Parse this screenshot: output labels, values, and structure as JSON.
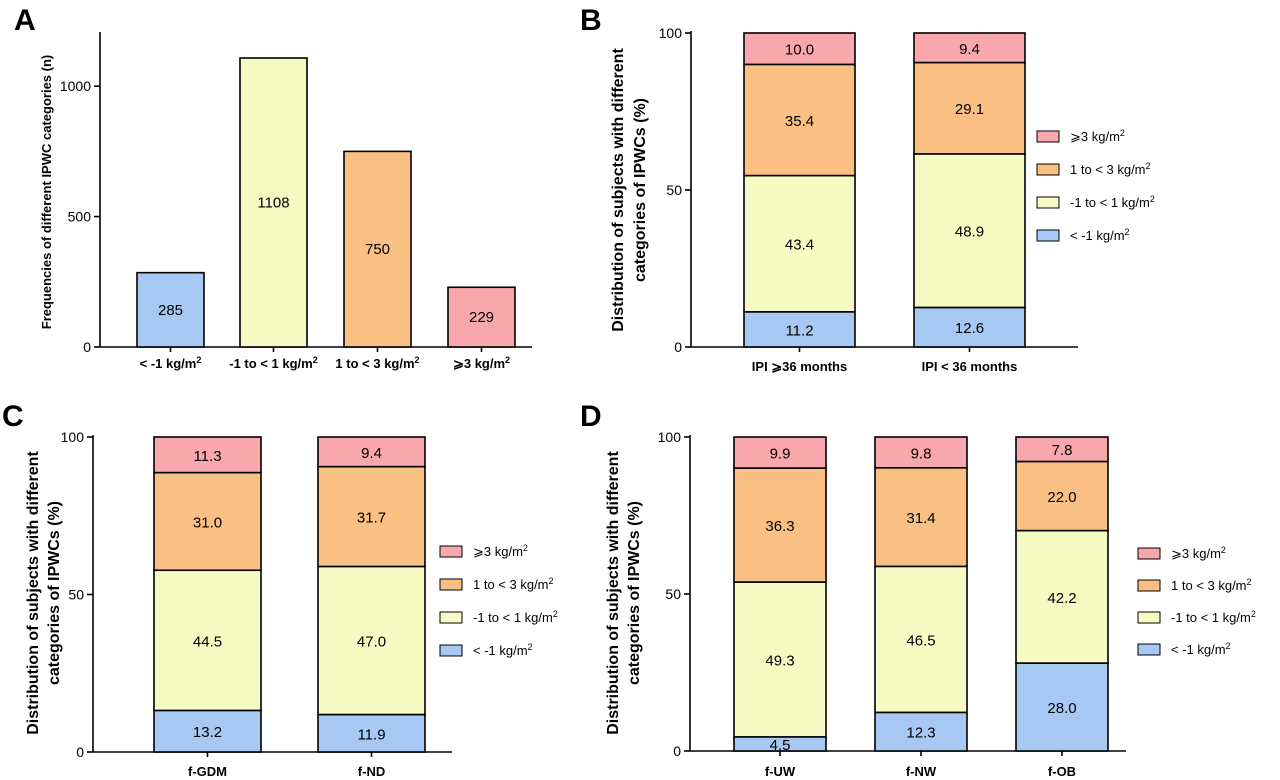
{
  "colors": {
    "lt_m1": "#a6c8f2",
    "m1_1": "#f6fbc3",
    "1_3": "#f9bf83",
    "ge3": "#f8a8ac",
    "axis": "#000000"
  },
  "chart_data": [
    {
      "panel": "A",
      "type": "bar",
      "ylabel": "Frequencies of different IPWC categories (n)",
      "ylim": [
        0,
        1200
      ],
      "yticks": [
        "0",
        "500",
        "1000"
      ],
      "categories": [
        "< -1 kg/m2",
        "-1 to < 1 kg/m2",
        "1 to < 3 kg/m2",
        "⩾3 kg/m2"
      ],
      "values": [
        285,
        1108,
        750,
        229
      ],
      "labels": [
        "285",
        "1108",
        "750",
        "229"
      ],
      "color_keys": [
        "lt_m1",
        "m1_1",
        "1_3",
        "ge3"
      ]
    },
    {
      "panel": "B",
      "type": "bar",
      "stacked": true,
      "ylabel_lines": [
        "Distribution of subjects with different",
        "categories of IPWCs (%)"
      ],
      "ylim": [
        0,
        100
      ],
      "yticks": [
        "0",
        "50",
        "100"
      ],
      "categories": [
        "IPI ⩾36 months",
        "IPI < 36 months"
      ],
      "series": [
        {
          "name": "< -1 kg/m2",
          "color_key": "lt_m1",
          "values": [
            11.2,
            12.6
          ],
          "labels": [
            "11.2",
            "12.6"
          ]
        },
        {
          "name": "-1 to < 1 kg/m2",
          "color_key": "m1_1",
          "values": [
            43.4,
            48.9
          ],
          "labels": [
            "43.4",
            "48.9"
          ]
        },
        {
          "name": "1 to < 3 kg/m2",
          "color_key": "1_3",
          "values": [
            35.4,
            29.1
          ],
          "labels": [
            "35.4",
            "29.1"
          ]
        },
        {
          "name": "⩾3 kg/m2",
          "color_key": "ge3",
          "values": [
            10.0,
            9.4
          ],
          "labels": [
            "10.0",
            "9.4"
          ]
        }
      ],
      "legend": "right"
    },
    {
      "panel": "C",
      "type": "bar",
      "stacked": true,
      "ylabel_lines": [
        "Distribution of subjects with different",
        "categories of IPWCs (%)"
      ],
      "ylim": [
        0,
        100
      ],
      "yticks": [
        "0",
        "50",
        "100"
      ],
      "categories": [
        "f-GDM",
        "f-ND"
      ],
      "series": [
        {
          "name": "< -1 kg/m2",
          "color_key": "lt_m1",
          "values": [
            13.2,
            11.9
          ],
          "labels": [
            "13.2",
            "11.9"
          ]
        },
        {
          "name": "-1 to < 1 kg/m2",
          "color_key": "m1_1",
          "values": [
            44.5,
            47.0
          ],
          "labels": [
            "44.5",
            "47.0"
          ]
        },
        {
          "name": "1 to < 3 kg/m2",
          "color_key": "1_3",
          "values": [
            31.0,
            31.7
          ],
          "labels": [
            "31.0",
            "31.7"
          ]
        },
        {
          "name": "⩾3 kg/m2",
          "color_key": "ge3",
          "values": [
            11.3,
            9.4
          ],
          "labels": [
            "11.3",
            "9.4"
          ]
        }
      ],
      "legend": "right"
    },
    {
      "panel": "D",
      "type": "bar",
      "stacked": true,
      "ylabel_lines": [
        "Distribution of subjects with different",
        "categories of IPWCs (%)"
      ],
      "ylim": [
        0,
        100
      ],
      "yticks": [
        "0",
        "50",
        "100"
      ],
      "categories": [
        "f-UW",
        "f-NW",
        "f-OB"
      ],
      "series": [
        {
          "name": "< -1 kg/m2",
          "color_key": "lt_m1",
          "values": [
            4.5,
            12.3,
            28.0
          ],
          "labels": [
            "4.5",
            "12.3",
            "28.0"
          ]
        },
        {
          "name": "-1 to < 1 kg/m2",
          "color_key": "m1_1",
          "values": [
            49.3,
            46.5,
            42.2
          ],
          "labels": [
            "49.3",
            "46.5",
            "42.2"
          ]
        },
        {
          "name": "1 to < 3 kg/m2",
          "color_key": "1_3",
          "values": [
            36.3,
            31.4,
            22.0
          ],
          "labels": [
            "36.3",
            "31.4",
            "22.0"
          ]
        },
        {
          "name": "⩾3 kg/m2",
          "color_key": "ge3",
          "values": [
            9.9,
            9.8,
            7.8
          ],
          "labels": [
            "9.9",
            "9.8",
            "7.8"
          ]
        }
      ],
      "legend": "right"
    }
  ]
}
